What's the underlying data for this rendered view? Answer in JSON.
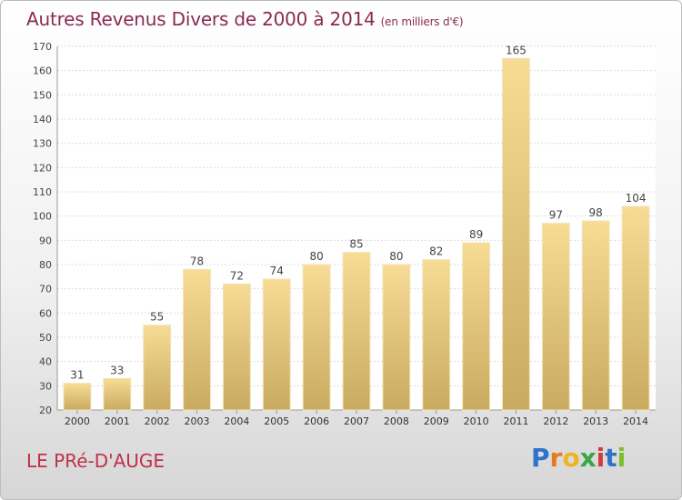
{
  "chart_data": {
    "type": "bar",
    "title": "Autres Revenus Divers de 2000 à 2014",
    "unit_label": "(en milliers d'€)",
    "categories": [
      "2000",
      "2001",
      "2002",
      "2003",
      "2004",
      "2005",
      "2006",
      "2007",
      "2008",
      "2009",
      "2010",
      "2011",
      "2012",
      "2013",
      "2014"
    ],
    "values": [
      31,
      33,
      55,
      78,
      72,
      74,
      80,
      85,
      80,
      82,
      89,
      165,
      97,
      98,
      104
    ],
    "ylim": [
      20,
      170
    ],
    "yticks": [
      20,
      30,
      40,
      50,
      60,
      70,
      80,
      90,
      100,
      110,
      120,
      130,
      140,
      150,
      160,
      170
    ],
    "grid": true
  },
  "footer": {
    "place": "LE PRé-D'AUGE",
    "logo": "Proxiti"
  },
  "colors": {
    "title": "#8a2a52",
    "place": "#c0304a",
    "bar_light": "#f7dc96",
    "bar_dark": "#c9aa60",
    "logo_letters": [
      "#2f73c9",
      "#e87a1e",
      "#f0b323",
      "#3aa54a",
      "#d23c3c",
      "#2f73c9",
      "#7bbf2a"
    ]
  }
}
